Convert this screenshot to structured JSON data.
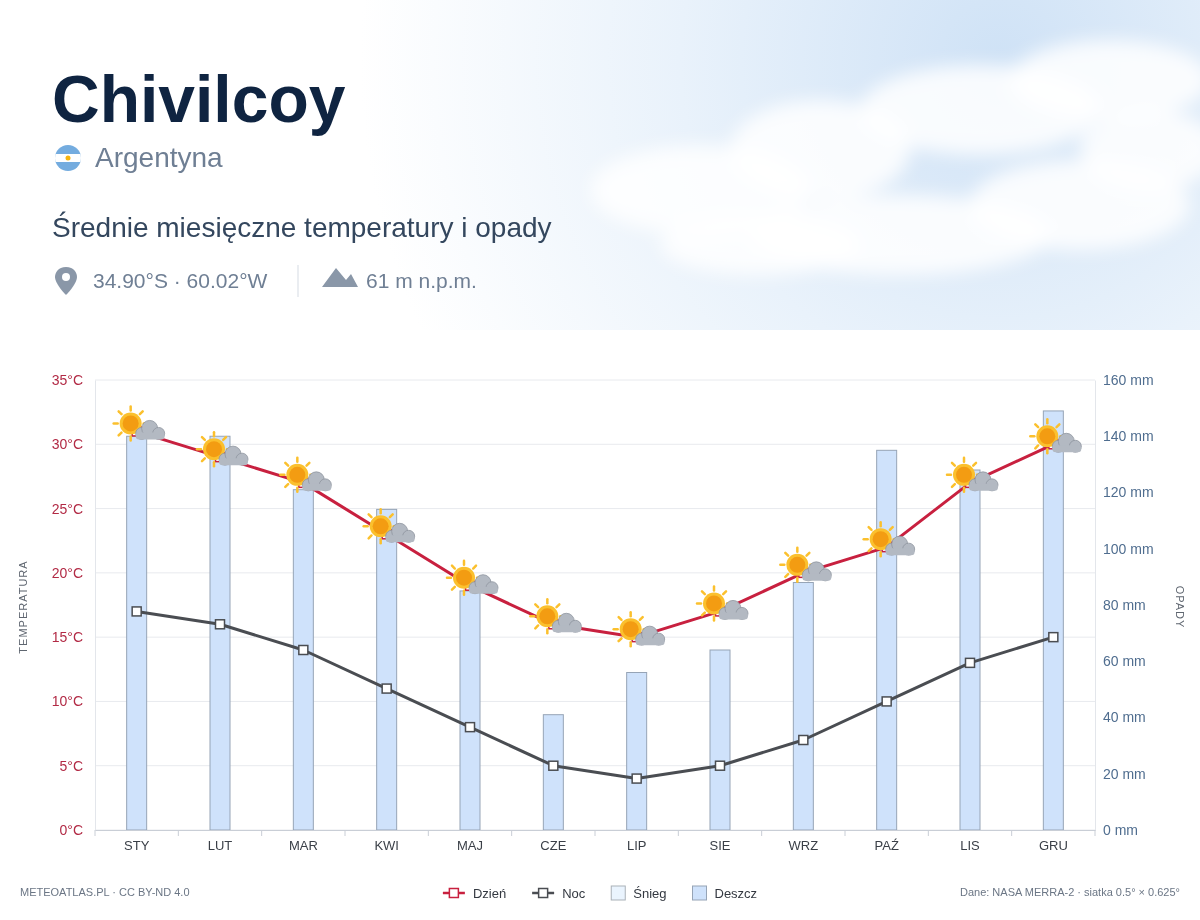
{
  "chart_data": {
    "type": "bar",
    "title": "Chivilcoy",
    "subtitle": "Średnie miesięczne temperatury i opady",
    "annotations": {
      "country": "Argentyna",
      "coordinates": "34.90°S · 60.02°W",
      "elevation": "61 m n.p.m.",
      "source": "METEOATLAS.PL · CC BY-ND 4.0",
      "data": "Dane: NASA MERRA-2 · siatka 0.5° × 0.625°"
    },
    "y_label": "TEMPERATURA",
    "y2_label": "OPADY",
    "categories": [
      "STY",
      "LUT",
      "MAR",
      "KWI",
      "MAJ",
      "CZE",
      "LIP",
      "SIE",
      "WRZ",
      "PAŹ",
      "LIS",
      "GRU"
    ],
    "series": [
      {
        "name": "Dzień",
        "type": "line",
        "color": "#c8203f",
        "marker": "square",
        "values": [
          31,
          29,
          27,
          23,
          19,
          16,
          15,
          17,
          20,
          22,
          27,
          30
        ]
      },
      {
        "name": "Noc",
        "type": "line",
        "color": "#4a4d52",
        "marker": "square",
        "values": [
          17,
          16,
          14,
          11,
          8,
          5,
          4,
          5,
          7,
          10,
          13,
          15
        ]
      },
      {
        "name": "Śnieg",
        "type": "bar",
        "axis": "y2",
        "color": "#eaf4fe",
        "values": [
          0,
          0,
          0,
          0,
          0,
          0,
          0,
          0,
          0,
          0,
          0,
          0
        ]
      },
      {
        "name": "Deszcz",
        "type": "bar",
        "axis": "y2",
        "color": "#cfe2fb",
        "values": [
          140,
          140,
          121,
          114,
          85,
          41,
          56,
          64,
          88,
          135,
          128,
          149
        ]
      }
    ],
    "ylim": [
      0,
      35
    ],
    "yticks": [
      {
        "value": 0,
        "label": "0°C"
      },
      {
        "value": 5,
        "label": "5°C"
      },
      {
        "value": 10,
        "label": "10°C"
      },
      {
        "value": 15,
        "label": "15°C"
      },
      {
        "value": 20,
        "label": "20°C"
      },
      {
        "value": 25,
        "label": "25°C"
      },
      {
        "value": 30,
        "label": "30°C"
      },
      {
        "value": 35,
        "label": "35°C"
      }
    ],
    "y2lim": [
      0,
      160
    ],
    "y2ticks": [
      {
        "value": 0,
        "label": "0 mm"
      },
      {
        "value": 20,
        "label": "20 mm"
      },
      {
        "value": 40,
        "label": "40 mm"
      },
      {
        "value": 60,
        "label": "60 mm"
      },
      {
        "value": 80,
        "label": "80 mm"
      },
      {
        "value": 100,
        "label": "100 mm"
      },
      {
        "value": 120,
        "label": "120 mm"
      },
      {
        "value": 140,
        "label": "140 mm"
      },
      {
        "value": 160,
        "label": "160 mm"
      }
    ],
    "grid": true,
    "stacked": true,
    "legend": "bottom"
  }
}
